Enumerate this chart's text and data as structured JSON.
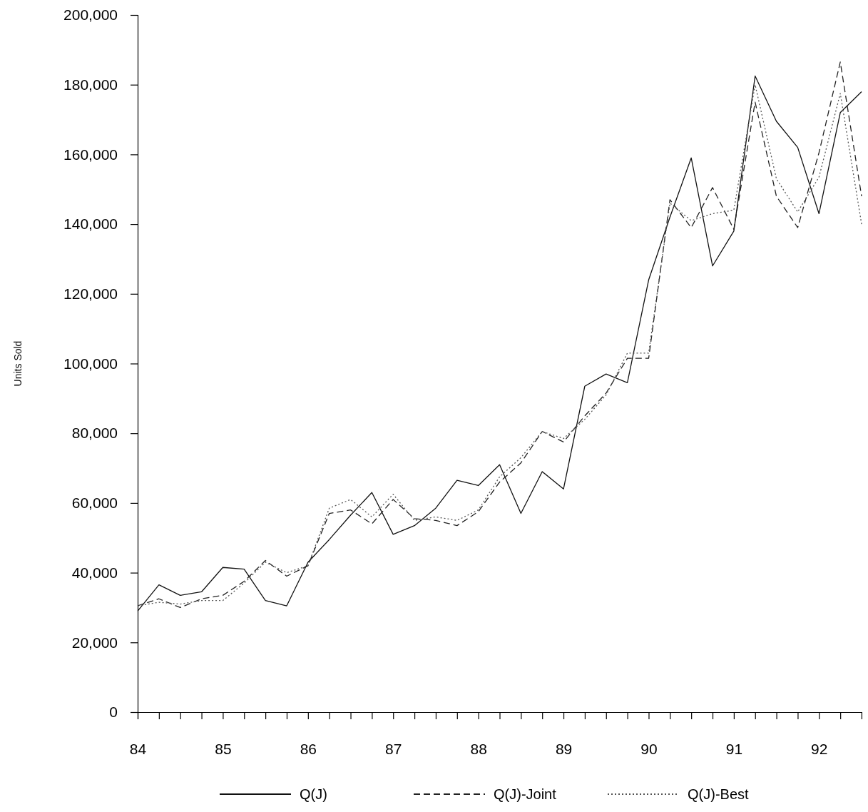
{
  "chart_data": {
    "type": "line",
    "ylabel": "Units Sold",
    "x": [
      84,
      84.25,
      84.5,
      84.75,
      85,
      85.25,
      85.5,
      85.75,
      86,
      86.25,
      86.5,
      86.75,
      87,
      87.25,
      87.5,
      87.75,
      88,
      88.25,
      88.5,
      88.75,
      89,
      89.25,
      89.5,
      89.75,
      90,
      90.25,
      90.5,
      90.75,
      91,
      91.25,
      91.5,
      91.75,
      92,
      92.25,
      92.5
    ],
    "series": [
      {
        "name": "Q(J)",
        "color": "#111111",
        "line_style": "solid",
        "values": [
          29000,
          36500,
          33500,
          34500,
          41500,
          41000,
          32000,
          30500,
          43000,
          49500,
          56500,
          63000,
          51000,
          53500,
          58500,
          66500,
          65000,
          71000,
          57000,
          69000,
          64000,
          93500,
          97000,
          94500,
          124000,
          142000,
          159000,
          128000,
          138000,
          182500,
          169500,
          162000,
          143000,
          172000,
          178000
        ]
      },
      {
        "name": "Q(J)-Joint",
        "color": "#222222",
        "line_style": "dashed",
        "values": [
          30500,
          32500,
          30000,
          32500,
          33500,
          37500,
          43500,
          39000,
          42000,
          57000,
          58000,
          54000,
          61000,
          55500,
          55000,
          53500,
          57500,
          66000,
          71500,
          80500,
          77500,
          85000,
          91500,
          101500,
          101500,
          147000,
          139000,
          150500,
          138500,
          175000,
          148000,
          139000,
          160500,
          186500,
          148000
        ]
      },
      {
        "name": "Q(J)-Best",
        "color": "#555555",
        "line_style": "dotted",
        "values": [
          30500,
          31500,
          31000,
          32000,
          32000,
          37000,
          43000,
          40000,
          42000,
          58500,
          61000,
          56000,
          62500,
          55000,
          56000,
          55000,
          58000,
          67500,
          73000,
          80500,
          78500,
          84000,
          91000,
          103000,
          103000,
          146000,
          141000,
          143000,
          144000,
          180000,
          153000,
          143500,
          153500,
          177500,
          140000
        ]
      }
    ],
    "xlim": [
      84,
      92.5
    ],
    "xticks": [
      {
        "value": 84,
        "label": "84"
      },
      {
        "value": 84.25,
        "label": null
      },
      {
        "value": 84.5,
        "label": null
      },
      {
        "value": 84.75,
        "label": null
      },
      {
        "value": 85,
        "label": "85"
      },
      {
        "value": 85.25,
        "label": null
      },
      {
        "value": 85.5,
        "label": null
      },
      {
        "value": 85.75,
        "label": null
      },
      {
        "value": 86,
        "label": "86"
      },
      {
        "value": 86.25,
        "label": null
      },
      {
        "value": 86.5,
        "label": null
      },
      {
        "value": 86.75,
        "label": null
      },
      {
        "value": 87,
        "label": "87"
      },
      {
        "value": 87.25,
        "label": null
      },
      {
        "value": 87.5,
        "label": null
      },
      {
        "value": 87.75,
        "label": null
      },
      {
        "value": 88,
        "label": "88"
      },
      {
        "value": 88.25,
        "label": null
      },
      {
        "value": 88.5,
        "label": null
      },
      {
        "value": 88.75,
        "label": null
      },
      {
        "value": 89,
        "label": "89"
      },
      {
        "value": 89.25,
        "label": null
      },
      {
        "value": 89.5,
        "label": null
      },
      {
        "value": 89.75,
        "label": null
      },
      {
        "value": 90,
        "label": "90"
      },
      {
        "value": 90.25,
        "label": null
      },
      {
        "value": 90.5,
        "label": null
      },
      {
        "value": 90.75,
        "label": null
      },
      {
        "value": 91,
        "label": "91"
      },
      {
        "value": 91.25,
        "label": null
      },
      {
        "value": 91.5,
        "label": null
      },
      {
        "value": 91.75,
        "label": null
      },
      {
        "value": 92,
        "label": "92"
      },
      {
        "value": 92.25,
        "label": null
      },
      {
        "value": 92.5,
        "label": null
      }
    ],
    "ylim": [
      0,
      200000
    ],
    "yticks": [
      {
        "value": 0,
        "label": "0"
      },
      {
        "value": 20000,
        "label": "20,000"
      },
      {
        "value": 40000,
        "label": "40,000"
      },
      {
        "value": 60000,
        "label": "60,000"
      },
      {
        "value": 80000,
        "label": "80,000"
      },
      {
        "value": 100000,
        "label": "100,000"
      },
      {
        "value": 120000,
        "label": "120,000"
      },
      {
        "value": 140000,
        "label": "140,000"
      },
      {
        "value": 160000,
        "label": "160,000"
      },
      {
        "value": 180000,
        "label": "180,000"
      },
      {
        "value": 200000,
        "label": "200,000"
      }
    ],
    "grid": false,
    "legend": "bottom",
    "marker": "none"
  }
}
